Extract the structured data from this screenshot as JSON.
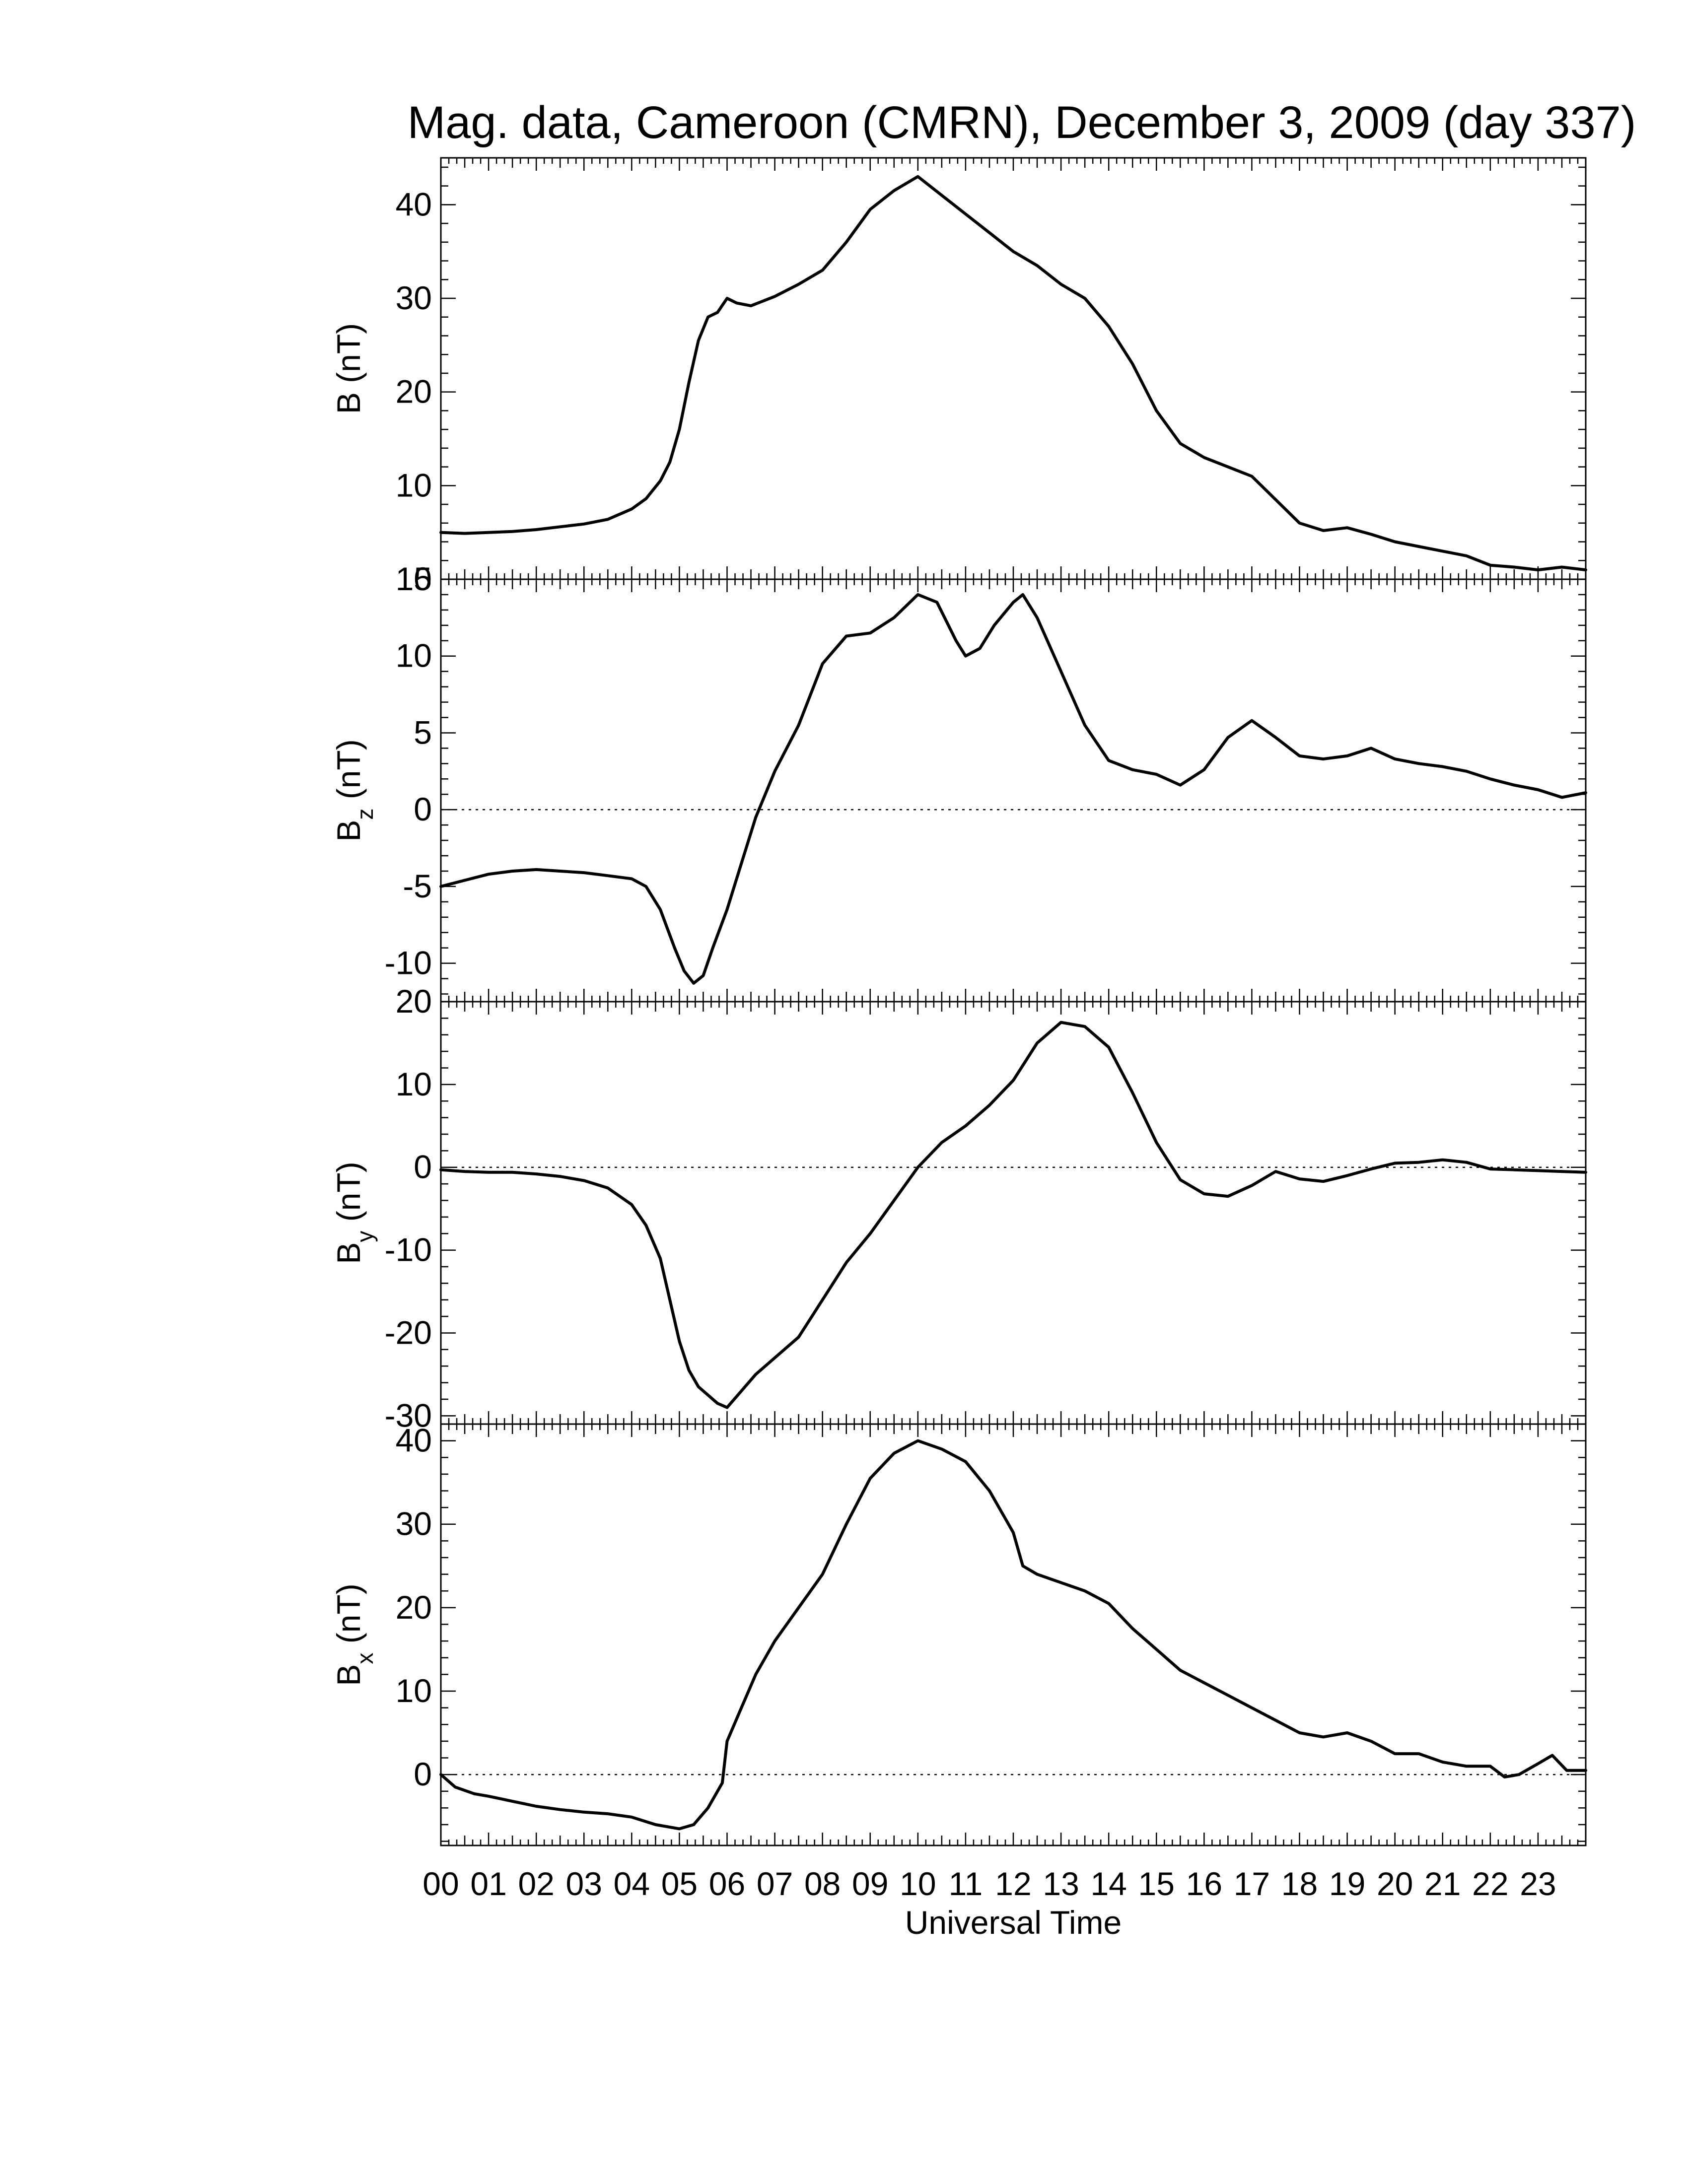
{
  "chart_data": {
    "type": "line",
    "title": "Mag. data, Cameroon (CMRN), December 3, 2009 (day 337)",
    "xlabel": "Universal Time",
    "xlim": [
      0,
      24
    ],
    "x_tick_labels": [
      "00",
      "01",
      "02",
      "03",
      "04",
      "05",
      "06",
      "07",
      "08",
      "09",
      "10",
      "11",
      "12",
      "13",
      "14",
      "15",
      "16",
      "17",
      "18",
      "19",
      "20",
      "21",
      "22",
      "23"
    ],
    "grid": false,
    "panels": [
      {
        "name": "B",
        "ylabel_main": "B (nT)",
        "ylabel_base": "",
        "ylabel_sub": "",
        "ylabel_rest": "",
        "ylim": [
          0,
          45
        ],
        "yticks": [
          0,
          10,
          20,
          30,
          40
        ],
        "zero_line": false,
        "x": [
          0,
          0.5,
          1,
          1.5,
          2,
          2.5,
          3,
          3.5,
          4,
          4.3,
          4.6,
          4.8,
          5,
          5.2,
          5.4,
          5.6,
          5.8,
          6,
          6.2,
          6.5,
          7,
          7.5,
          8,
          8.5,
          9,
          9.5,
          10,
          10.5,
          11,
          11.5,
          12,
          12.5,
          13,
          13.5,
          14,
          14.5,
          15,
          15.5,
          16,
          16.5,
          17,
          17.5,
          18,
          18.5,
          19,
          19.5,
          20,
          20.5,
          21,
          21.5,
          22,
          22.5,
          23,
          23.5,
          24
        ],
        "y": [
          5,
          4.9,
          5,
          5.1,
          5.3,
          5.6,
          5.9,
          6.4,
          7.5,
          8.6,
          10.5,
          12.5,
          16,
          21,
          25.5,
          28,
          28.5,
          30,
          29.5,
          29.2,
          30.2,
          31.5,
          33,
          36,
          39.5,
          41.5,
          43,
          41,
          39,
          37,
          35,
          33.5,
          31.5,
          30,
          27,
          23,
          18,
          14.5,
          13,
          12,
          11,
          8.5,
          6,
          5.2,
          5.5,
          4.8,
          4,
          3.5,
          3,
          2.5,
          1.5,
          1.3,
          1,
          1.3,
          1
        ]
      },
      {
        "name": "Bz",
        "ylabel_main": "",
        "ylabel_base": "B",
        "ylabel_sub": "z",
        "ylabel_rest": " (nT)",
        "ylim": [
          -12.5,
          15
        ],
        "yticks": [
          -10,
          -5,
          0,
          5,
          10,
          15
        ],
        "zero_line": true,
        "x": [
          0,
          0.5,
          1,
          1.5,
          2,
          2.5,
          3,
          3.5,
          4,
          4.3,
          4.6,
          4.9,
          5.1,
          5.3,
          5.5,
          5.7,
          6,
          6.3,
          6.6,
          7,
          7.5,
          8,
          8.5,
          9,
          9.5,
          10,
          10.4,
          10.8,
          11,
          11.3,
          11.6,
          12,
          12.2,
          12.5,
          13,
          13.5,
          14,
          14.5,
          15,
          15.5,
          16,
          16.5,
          17,
          17.5,
          18,
          18.5,
          19,
          19.5,
          20,
          20.5,
          21,
          21.5,
          22,
          22.5,
          23,
          23.5,
          24
        ],
        "y": [
          -5,
          -4.6,
          -4.2,
          -4,
          -3.9,
          -4,
          -4.1,
          -4.3,
          -4.5,
          -5,
          -6.5,
          -9,
          -10.5,
          -11.3,
          -10.8,
          -9,
          -6.5,
          -3.5,
          -0.5,
          2.5,
          5.5,
          9.5,
          11.3,
          11.5,
          12.5,
          14,
          13.5,
          11,
          10,
          10.5,
          12,
          13.5,
          14,
          12.5,
          9,
          5.5,
          3.2,
          2.6,
          2.3,
          1.6,
          2.6,
          4.7,
          5.8,
          4.7,
          3.5,
          3.3,
          3.5,
          4,
          3.3,
          3,
          2.8,
          2.5,
          2,
          1.6,
          1.3,
          0.8,
          1.1
        ]
      },
      {
        "name": "By",
        "ylabel_main": "",
        "ylabel_base": "B",
        "ylabel_sub": "y",
        "ylabel_rest": " (nT)",
        "ylim": [
          -31,
          20
        ],
        "yticks": [
          -30,
          -20,
          -10,
          0,
          10,
          20
        ],
        "zero_line": true,
        "x": [
          0,
          0.5,
          1,
          1.5,
          2,
          2.5,
          3,
          3.5,
          4,
          4.3,
          4.6,
          4.8,
          5,
          5.2,
          5.4,
          5.6,
          5.8,
          6,
          6.3,
          6.6,
          7,
          7.5,
          8,
          8.5,
          9,
          9.5,
          10,
          10.5,
          11,
          11.5,
          12,
          12.5,
          13,
          13.5,
          14,
          14.5,
          15,
          15.5,
          16,
          16.5,
          17,
          17.5,
          18,
          18.5,
          19,
          19.5,
          20,
          20.5,
          21,
          21.5,
          22,
          22.5,
          23,
          23.5,
          24
        ],
        "y": [
          -0.3,
          -0.5,
          -0.6,
          -0.6,
          -0.8,
          -1.1,
          -1.6,
          -2.5,
          -4.5,
          -7,
          -11,
          -16,
          -21,
          -24.5,
          -26.5,
          -27.5,
          -28.5,
          -29,
          -27,
          -25,
          -23,
          -20.5,
          -16,
          -11.5,
          -8,
          -4,
          0,
          3,
          5,
          7.5,
          10.5,
          15,
          17.5,
          17,
          14.5,
          9,
          3,
          -1.5,
          -3.2,
          -3.5,
          -2.2,
          -0.5,
          -1.4,
          -1.7,
          -1,
          -0.2,
          0.5,
          0.6,
          0.9,
          0.6,
          -0.2,
          -0.3,
          -0.4,
          -0.5,
          -0.6
        ]
      },
      {
        "name": "Bx",
        "ylabel_main": "",
        "ylabel_base": "B",
        "ylabel_sub": "x",
        "ylabel_rest": " (nT)",
        "ylim": [
          -8.5,
          42
        ],
        "yticks": [
          0,
          10,
          20,
          30,
          40
        ],
        "zero_line": true,
        "x": [
          0,
          0.3,
          0.7,
          1,
          1.5,
          2,
          2.5,
          3,
          3.5,
          4,
          4.5,
          5,
          5.3,
          5.6,
          5.9,
          6,
          6.3,
          6.6,
          7,
          7.5,
          8,
          8.5,
          9,
          9.5,
          10,
          10.5,
          11,
          11.5,
          12,
          12.2,
          12.5,
          13,
          13.5,
          14,
          14.5,
          15,
          15.5,
          16,
          16.5,
          17,
          17.5,
          18,
          18.5,
          19,
          19.5,
          20,
          20.5,
          21,
          21.5,
          22,
          22.3,
          22.6,
          23,
          23.3,
          23.6,
          24
        ],
        "y": [
          0,
          -1.5,
          -2.3,
          -2.6,
          -3.2,
          -3.8,
          -4.2,
          -4.5,
          -4.7,
          -5.1,
          -6,
          -6.5,
          -6,
          -4,
          -1,
          4,
          8,
          12,
          16,
          20,
          24,
          30,
          35.5,
          38.5,
          40,
          39,
          37.5,
          34,
          29,
          25,
          24,
          23,
          22,
          20.5,
          17.5,
          15,
          12.5,
          11,
          9.5,
          8,
          6.5,
          5,
          4.5,
          5,
          4,
          2.5,
          2.5,
          1.5,
          1,
          1,
          -0.3,
          0,
          1.3,
          2.3,
          0.5,
          0.5
        ]
      }
    ]
  }
}
